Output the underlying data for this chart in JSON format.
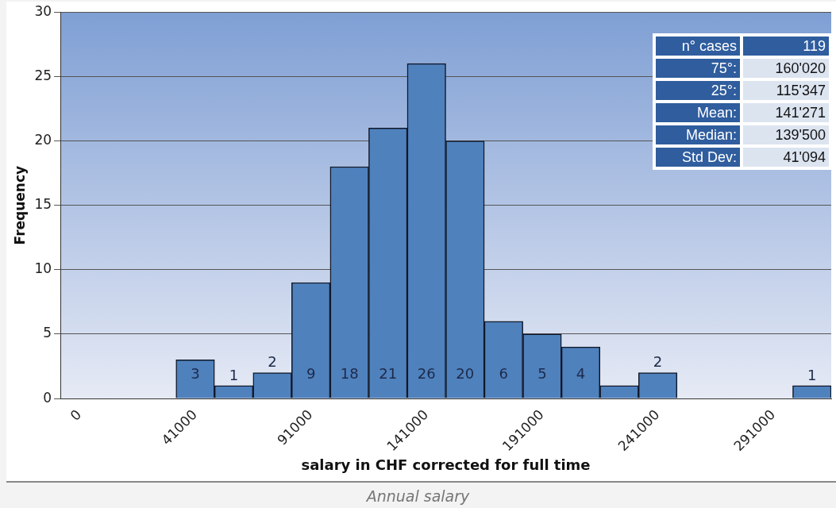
{
  "chart_data": {
    "type": "bar",
    "title": "Annual salary",
    "xlabel": "salary in CHF corrected for full time",
    "ylabel": "Frequency",
    "categories": [
      "0",
      null,
      null,
      "41000",
      null,
      null,
      "91000",
      null,
      null,
      "141000",
      null,
      null,
      "191000",
      null,
      null,
      "241000",
      null,
      null,
      "291000",
      null
    ],
    "values": [
      0,
      0,
      0,
      3,
      1,
      2,
      9,
      18,
      21,
      26,
      20,
      6,
      5,
      4,
      1,
      2,
      0,
      0,
      0,
      1
    ],
    "value_labels": [
      null,
      null,
      null,
      "3",
      "1",
      "2",
      "9",
      "18",
      "21",
      "26",
      "20",
      "6",
      "5",
      "4",
      null,
      "2",
      null,
      null,
      null,
      "1"
    ],
    "color": "#4f81bd",
    "ylim": [
      0,
      30
    ],
    "yticks": [
      0,
      5,
      10,
      15,
      20,
      25,
      30
    ],
    "grid": "y",
    "annotations": [
      "n° cases",
      "119",
      "75°:",
      "160'020",
      "25°:",
      "115'347",
      "Mean:",
      "141'271",
      "Median:",
      "139'500",
      "Std Dev:",
      "41'094"
    ]
  }
}
